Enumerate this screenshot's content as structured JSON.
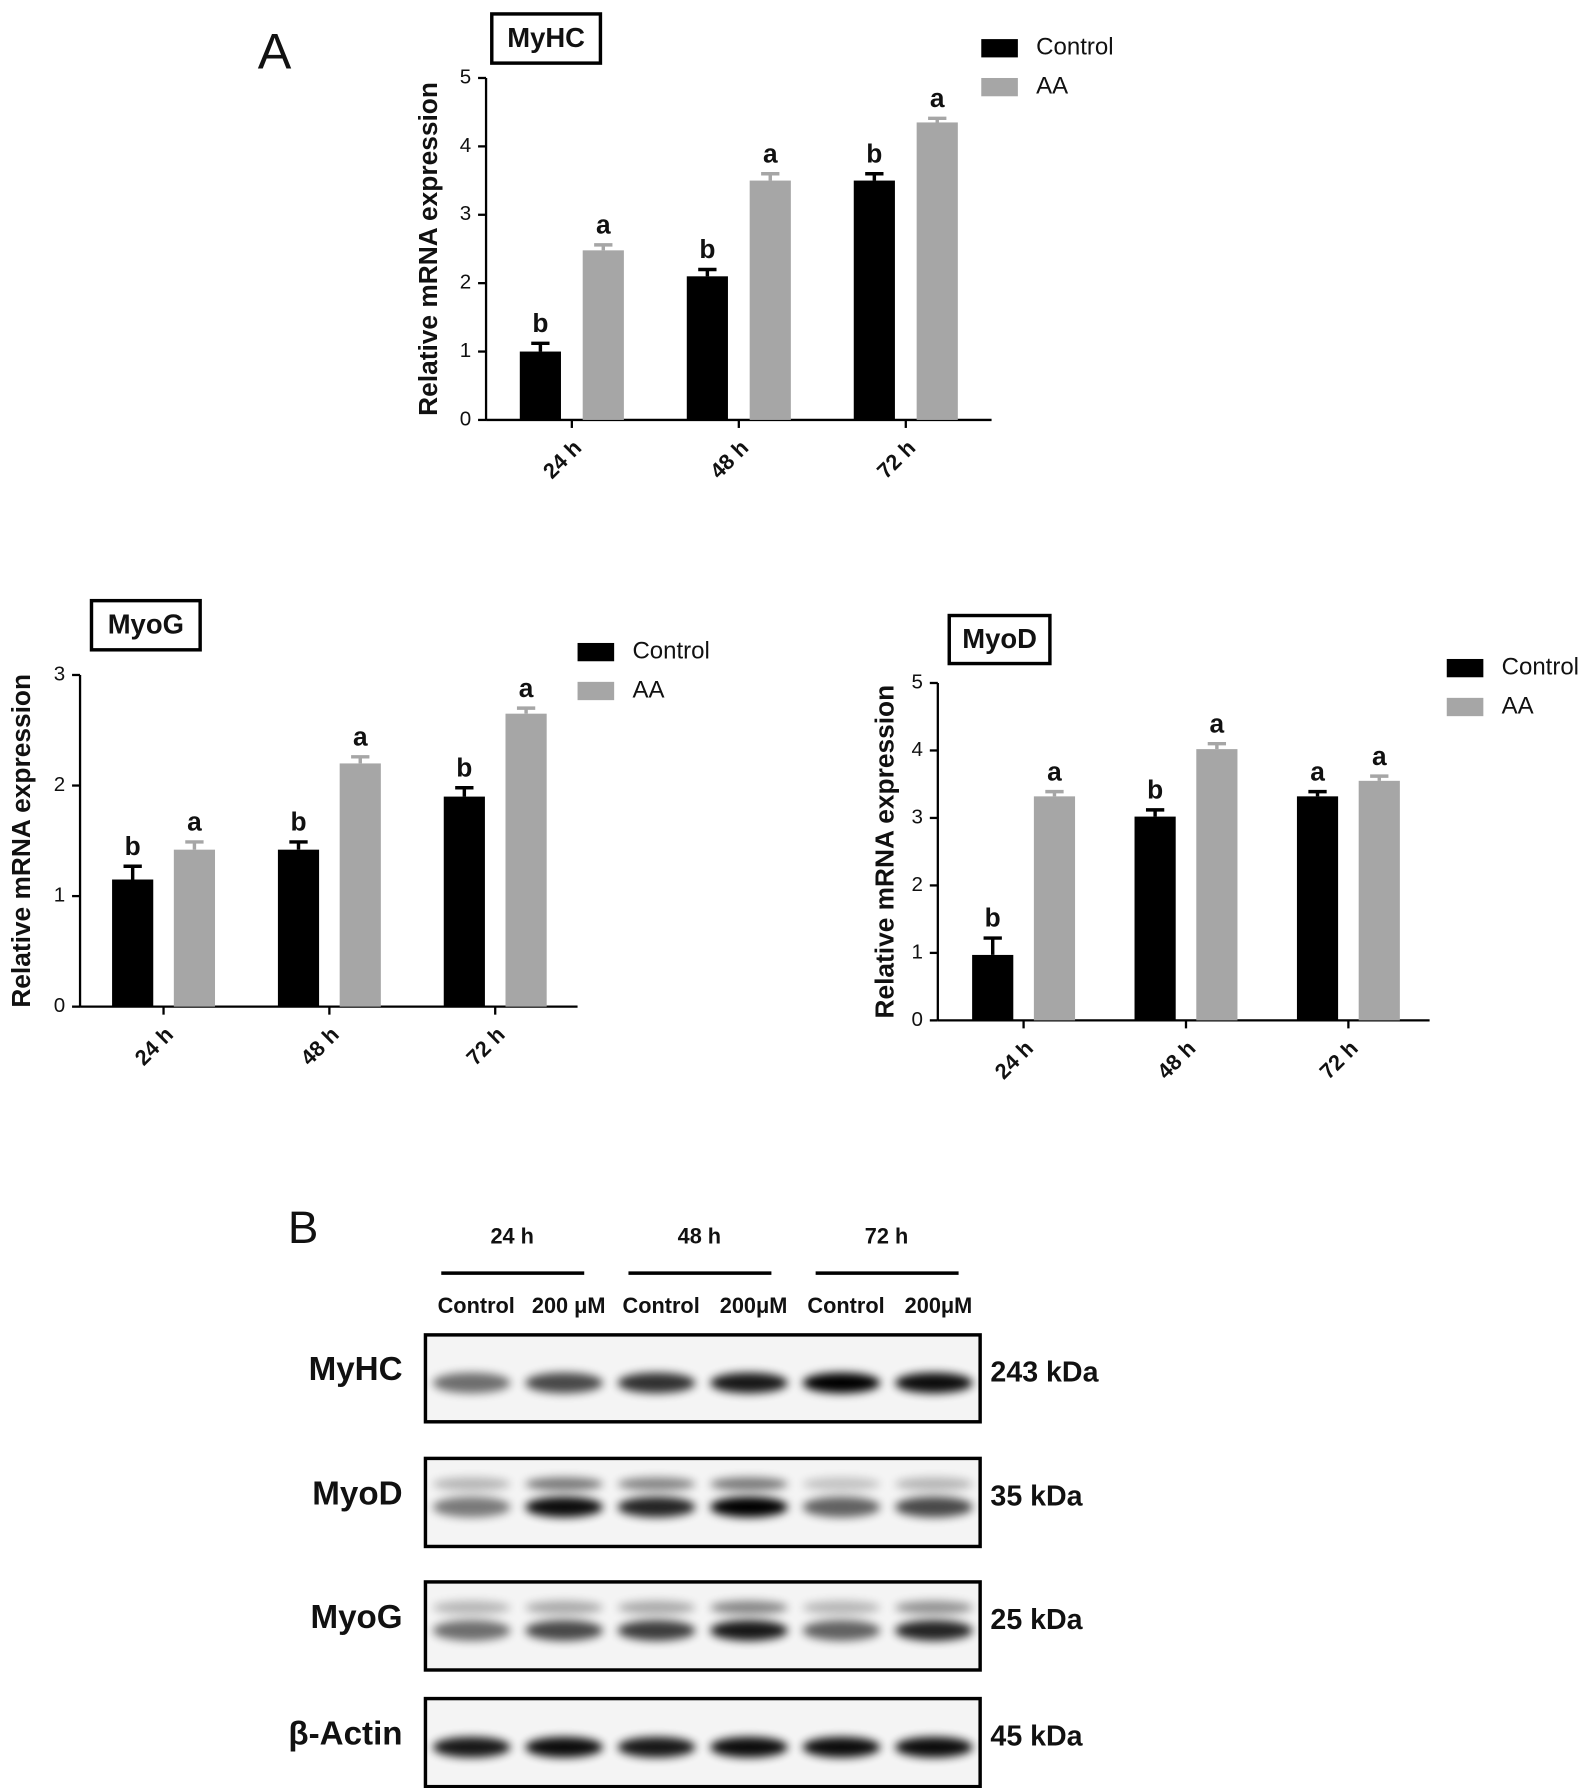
{
  "panel_a": {
    "label": "A"
  },
  "chart_data": [
    {
      "type": "bar",
      "title": "MyHC",
      "ylabel": "Relative mRNA expression",
      "categories": [
        "24 h",
        "48 h",
        "72 h"
      ],
      "series": [
        {
          "name": "Control",
          "color": "#000000",
          "values": [
            1.0,
            2.1,
            3.5
          ],
          "errors": [
            0.12,
            0.1,
            0.1
          ],
          "letters": [
            "b",
            "b",
            "b"
          ]
        },
        {
          "name": "AA",
          "color": "#a6a6a6",
          "values": [
            2.48,
            3.5,
            4.35
          ],
          "errors": [
            0.08,
            0.1,
            0.06
          ],
          "letters": [
            "a",
            "a",
            "a"
          ]
        }
      ],
      "ylim": [
        0,
        5
      ],
      "yticks": [
        0,
        1,
        2,
        3,
        4,
        5
      ]
    },
    {
      "type": "bar",
      "title": "MyoG",
      "ylabel": "Relative mRNA expression",
      "categories": [
        "24 h",
        "48 h",
        "72 h"
      ],
      "series": [
        {
          "name": "Control",
          "color": "#000000",
          "values": [
            1.15,
            1.42,
            1.9
          ],
          "errors": [
            0.12,
            0.07,
            0.08
          ],
          "letters": [
            "b",
            "b",
            "b"
          ]
        },
        {
          "name": "AA",
          "color": "#a6a6a6",
          "values": [
            1.42,
            2.2,
            2.65
          ],
          "errors": [
            0.07,
            0.06,
            0.05
          ],
          "letters": [
            "a",
            "a",
            "a"
          ]
        }
      ],
      "ylim": [
        0,
        3
      ],
      "yticks": [
        0,
        1,
        2,
        3
      ]
    },
    {
      "type": "bar",
      "title": "MyoD",
      "ylabel": "Relative mRNA expression",
      "categories": [
        "24 h",
        "48 h",
        "72 h"
      ],
      "series": [
        {
          "name": "Control",
          "color": "#000000",
          "values": [
            0.97,
            3.02,
            3.32
          ],
          "errors": [
            0.25,
            0.1,
            0.07
          ],
          "letters": [
            "b",
            "b",
            "a"
          ]
        },
        {
          "name": "AA",
          "color": "#a6a6a6",
          "values": [
            3.32,
            4.02,
            3.55
          ],
          "errors": [
            0.07,
            0.08,
            0.07
          ],
          "letters": [
            "a",
            "a",
            "a"
          ]
        }
      ],
      "ylim": [
        0,
        5
      ],
      "yticks": [
        0,
        1,
        2,
        3,
        4,
        5
      ]
    }
  ],
  "blot": {
    "label": "B",
    "timepoints": [
      "24 h",
      "48 h",
      "72 h"
    ],
    "lanes": [
      "Control",
      "200 μM",
      "Control",
      "200μM",
      "Control",
      "200μM"
    ],
    "proteins": [
      {
        "name": "MyHC",
        "size": "243 kDa"
      },
      {
        "name": "MyoD",
        "size": "35 kDa"
      },
      {
        "name": "MyoG",
        "size": "25 kDa"
      },
      {
        "name": "β-Actin",
        "size": "45 kDa"
      }
    ]
  }
}
